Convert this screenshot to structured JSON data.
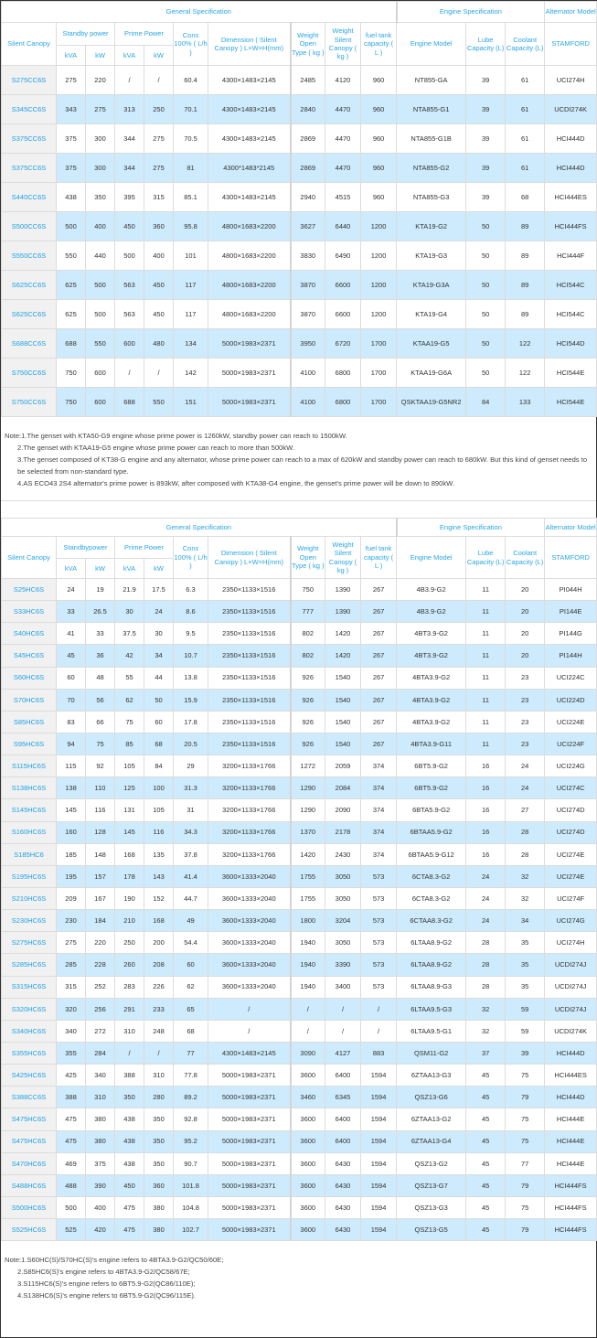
{
  "headers": {
    "general": "General Specification",
    "engine": "Engine Specification",
    "alternator": "Alternator Model",
    "silent_canopy": "Silent Canopy",
    "standby_power": "Standby power",
    "standby_power_t2": "Standbypower",
    "prime_power": "Prime Power",
    "cons": "Cons 100% ( L/h )",
    "dimension": "Dimension ( Silent Canopy ) L×W×H(mm)",
    "weight_open": "Weight Open Type ( kg )",
    "weight_silent": "Weight Silent Canopy ( kg )",
    "fuel_tank": "fuel tank capacity ( L )",
    "engine_model": "Engine Model",
    "lube": "Lube Capacity (L)",
    "coolant": "Coolant Capacity (L)",
    "stamford": "STAMFORD",
    "kva": "kVA",
    "kw": "kW"
  },
  "table1": {
    "rows": [
      [
        "S275CC6S",
        "275",
        "220",
        "/",
        "/",
        "60.4",
        "4300×1483×2145",
        "2485",
        "4120",
        "960",
        "NT855-GA",
        "39",
        "61",
        "UCI274H"
      ],
      [
        "S345CC6S",
        "343",
        "275",
        "313",
        "250",
        "70.1",
        "4300×1483×2145",
        "2840",
        "4470",
        "960",
        "NTA855-G1",
        "39",
        "61",
        "UCDI274K"
      ],
      [
        "S375CC6S",
        "375",
        "300",
        "344",
        "275",
        "70.5",
        "4300×1483×2145",
        "2869",
        "4470",
        "960",
        "NTA855-G1B",
        "39",
        "61",
        "HCI444D"
      ],
      [
        "S375CC6S",
        "375",
        "300",
        "344",
        "275",
        "81",
        "4300*1483*2145",
        "2869",
        "4470",
        "960",
        "NTA855-G2",
        "39",
        "61",
        "HCI444D"
      ],
      [
        "S440CC6S",
        "438",
        "350",
        "395",
        "315",
        "85.1",
        "4300×1483×2145",
        "2940",
        "4515",
        "960",
        "NTA855-G3",
        "39",
        "68",
        "HCI444ES"
      ],
      [
        "S500CC6S",
        "500",
        "400",
        "450",
        "360",
        "95.8",
        "4800×1683×2200",
        "3627",
        "6440",
        "1200",
        "KTA19-G2",
        "50",
        "89",
        "HCI444FS"
      ],
      [
        "S550CC6S",
        "550",
        "440",
        "500",
        "400",
        "101",
        "4800×1683×2200",
        "3830",
        "6490",
        "1200",
        "KTA19-G3",
        "50",
        "89",
        "HCI444F"
      ],
      [
        "S625CC6S",
        "625",
        "500",
        "563",
        "450",
        "117",
        "4800×1683×2200",
        "3870",
        "6600",
        "1200",
        "KTA19-G3A",
        "50",
        "89",
        "HCI544C"
      ],
      [
        "S625CC6S",
        "625",
        "500",
        "563",
        "450",
        "117",
        "4800×1683×2200",
        "3870",
        "6600",
        "1200",
        "KTA19-G4",
        "50",
        "89",
        "HCI544C"
      ],
      [
        "S688CC6S",
        "688",
        "550",
        "600",
        "480",
        "134",
        "5000×1983×2371",
        "3950",
        "6720",
        "1700",
        "KTAA19-G5",
        "50",
        "122",
        "HCI544D"
      ],
      [
        "S750CC6S",
        "750",
        "600",
        "/",
        "/",
        "142",
        "5000×1983×2371",
        "4100",
        "6800",
        "1700",
        "KTAA19-G6A",
        "50",
        "122",
        "HCI544E"
      ],
      [
        "S750CC6S",
        "750",
        "600",
        "688",
        "550",
        "151",
        "5000×1983×2371",
        "4100",
        "6800",
        "1700",
        "QSKTAA19-G5NR2",
        "84",
        "133",
        "HCI544E"
      ]
    ],
    "notes": [
      "Note:1.The genset with KTA50-G9 engine whose prime power is 1260kW, standby power can reach to 1500kW.",
      "2.The genset with KTAA19-G5 engine whose prime power can reach to more than 500kW.",
      "3.The genset composed of KT38-G engine and any alternator, whose prime power can reach to a max of 620kW and standby power can reach to 680kW. But this kind of genset needs to be selected from non-standard type.",
      "4.AS ECO43 2S4 alternator's prime power is 893kW, after composed with KTA38-G4 engine, the genset's prime power will be down to 890kW."
    ]
  },
  "table2": {
    "rows": [
      [
        "S25HC6S",
        "24",
        "19",
        "21.9",
        "17.5",
        "6.3",
        "2350×1133×1516",
        "750",
        "1390",
        "267",
        "4B3.9-G2",
        "11",
        "20",
        "PI044H"
      ],
      [
        "S33HC6S",
        "33",
        "26.5",
        "30",
        "24",
        "8.6",
        "2350×1133×1516",
        "777",
        "1390",
        "267",
        "4B3.9-G2",
        "11",
        "20",
        "PI144E"
      ],
      [
        "S40HC6S",
        "41",
        "33",
        "37.5",
        "30",
        "9.5",
        "2350×1133×1516",
        "802",
        "1420",
        "267",
        "4BT3.9-G2",
        "11",
        "20",
        "PI144G"
      ],
      [
        "S45HC6S",
        "45",
        "36",
        "42",
        "34",
        "10.7",
        "2350×1133×1516",
        "802",
        "1420",
        "267",
        "4BT3.9-G2",
        "11",
        "20",
        "PI144H"
      ],
      [
        "S60HC6S",
        "60",
        "48",
        "55",
        "44",
        "13.8",
        "2350×1133×1516",
        "926",
        "1540",
        "267",
        "4BTA3.9-G2",
        "11",
        "23",
        "UCI224C"
      ],
      [
        "S70HC6S",
        "70",
        "56",
        "62",
        "50",
        "15.9",
        "2350×1133×1516",
        "926",
        "1540",
        "267",
        "4BTA3.9-G2",
        "11",
        "23",
        "UCI224D"
      ],
      [
        "S85HC6S",
        "83",
        "66",
        "75",
        "60",
        "17.8",
        "2350×1133×1516",
        "926",
        "1540",
        "267",
        "4BTA3.9-G2",
        "11",
        "23",
        "UCI224E"
      ],
      [
        "S95HC6S",
        "94",
        "75",
        "85",
        "68",
        "20.5",
        "2350×1133×1516",
        "926",
        "1540",
        "267",
        "4BTA3.9-G11",
        "11",
        "23",
        "UCI224F"
      ],
      [
        "S115HC6S",
        "115",
        "92",
        "105",
        "84",
        "29",
        "3200×1133×1766",
        "1272",
        "2059",
        "374",
        "6BT5.9-G2",
        "16",
        "24",
        "UCI224G"
      ],
      [
        "S138HC6S",
        "138",
        "110",
        "125",
        "100",
        "31.3",
        "3200×1133×1766",
        "1290",
        "2084",
        "374",
        "6BT5.9-G2",
        "16",
        "24",
        "UCI274C"
      ],
      [
        "S145HC6S",
        "145",
        "116",
        "131",
        "105",
        "31",
        "3200×1133×1766",
        "1290",
        "2090",
        "374",
        "6BTA5.9-G2",
        "16",
        "27",
        "UCI274D"
      ],
      [
        "S160HC6S",
        "160",
        "128",
        "145",
        "116",
        "34.3",
        "3200×1133×1766",
        "1370",
        "2178",
        "374",
        "6BTAA5.9-G2",
        "16",
        "28",
        "UCI274D"
      ],
      [
        "S185HC6",
        "185",
        "148",
        "168",
        "135",
        "37.8",
        "3200×1133×1766",
        "1420",
        "2430",
        "374",
        "6BTAA5.9-G12",
        "16",
        "28",
        "UCI274E"
      ],
      [
        "S195HC6S",
        "195",
        "157",
        "178",
        "143",
        "41.4",
        "3600×1333×2040",
        "1755",
        "3050",
        "573",
        "6CTA8.3-G2",
        "24",
        "32",
        "UCI274E"
      ],
      [
        "S210HC6S",
        "209",
        "167",
        "190",
        "152",
        "44.7",
        "3600×1333×2040",
        "1755",
        "3050",
        "573",
        "6CTA8.3-G2",
        "24",
        "32",
        "UCI274F"
      ],
      [
        "S230HC6S",
        "230",
        "184",
        "210",
        "168",
        "49",
        "3600×1333×2040",
        "1800",
        "3204",
        "573",
        "6CTAA8.3-G2",
        "24",
        "34",
        "UCI274G"
      ],
      [
        "S275HC6S",
        "275",
        "220",
        "250",
        "200",
        "54.4",
        "3600×1333×2040",
        "1940",
        "3050",
        "573",
        "6LTAA8.9-G2",
        "28",
        "35",
        "UCI274H"
      ],
      [
        "S285HC6S",
        "285",
        "228",
        "260",
        "208",
        "60",
        "3600×1333×2040",
        "1940",
        "3390",
        "573",
        "6LTAA8.9-G2",
        "28",
        "35",
        "UCDI274J"
      ],
      [
        "S315HC6S",
        "315",
        "252",
        "283",
        "226",
        "62",
        "3600×1333×2040",
        "1940",
        "3400",
        "573",
        "6LTAA8.9-G3",
        "28",
        "35",
        "UCDI274J"
      ],
      [
        "S320HC6S",
        "320",
        "256",
        "291",
        "233",
        "65",
        "/",
        "/",
        "/",
        "/",
        "6LTAA9.5-G3",
        "32",
        "59",
        "UCDI274J"
      ],
      [
        "S340HC6S",
        "340",
        "272",
        "310",
        "248",
        "68",
        "/",
        "/",
        "/",
        "/",
        "6LTAA9.5-G1",
        "32",
        "59",
        "UCDI274K"
      ],
      [
        "S355HC6S",
        "355",
        "284",
        "/",
        "/",
        "77",
        "4300×1483×2145",
        "3090",
        "4127",
        "883",
        "QSM11-G2",
        "37",
        "39",
        "HCI444D"
      ],
      [
        "S425HC6S",
        "425",
        "340",
        "388",
        "310",
        "77.8",
        "5000×1983×2371",
        "3600",
        "6400",
        "1594",
        "6ZTAA13-G3",
        "45",
        "75",
        "HCI444ES"
      ],
      [
        "S388CC6S",
        "388",
        "310",
        "350",
        "280",
        "89.2",
        "5000×1983×2371",
        "3460",
        "6345",
        "1594",
        "QSZ13-G6",
        "45",
        "79",
        "HCI444D"
      ],
      [
        "S475HC6S",
        "475",
        "380",
        "438",
        "350",
        "92.8",
        "5000×1983×2371",
        "3600",
        "6400",
        "1594",
        "6ZTAA13-G2",
        "45",
        "75",
        "HCI444E"
      ],
      [
        "S475HC6S",
        "475",
        "380",
        "438",
        "350",
        "95.2",
        "5000×1983×2371",
        "3600",
        "6400",
        "1594",
        "6ZTAA13-G4",
        "45",
        "75",
        "HCI444E"
      ],
      [
        "S470HC6S",
        "469",
        "375",
        "438",
        "350",
        "90.7",
        "5000×1983×2371",
        "3600",
        "6430",
        "1594",
        "QSZ13-G2",
        "45",
        "77",
        "HCI444E"
      ],
      [
        "S488HC6S",
        "488",
        "390",
        "450",
        "360",
        "101.8",
        "5000×1983×2371",
        "3600",
        "6430",
        "1594",
        "QSZ13-G7",
        "45",
        "79",
        "HCI444FS"
      ],
      [
        "S500HC6S",
        "500",
        "400",
        "475",
        "380",
        "104.8",
        "5000×1983×2371",
        "3600",
        "6430",
        "1594",
        "QSZ13-G3",
        "45",
        "75",
        "HCI444FS"
      ],
      [
        "S525HC6S",
        "525",
        "420",
        "475",
        "380",
        "102.7",
        "5000×1983×2371",
        "3600",
        "6430",
        "1594",
        "QSZ13-G5",
        "45",
        "79",
        "HCI444FS"
      ]
    ],
    "notes": [
      "Note:1.S60HC(S)/S70HC(S)'s engine refers to 4BTA3.9-G2/QC50/60E;",
      "2.S85HC6(S)'s engine refers to 4BTA3.9-G2/QC58/67E;",
      "3.S115HC6(S)'s engine refers to 6BT5.9-G2(QC86/110E);",
      "4.S138HC6(S)'s engine refers to 6BT5.9-G2(QC96/115E)."
    ]
  }
}
